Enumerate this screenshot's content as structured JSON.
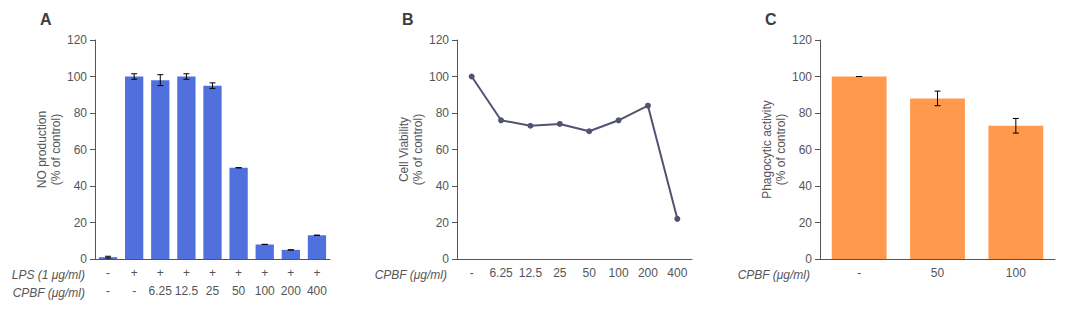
{
  "chart_data": [
    {
      "type": "bar",
      "title": "A",
      "ylabel": "NO production\n(% of control)",
      "xlabel_lps": "LPS (1 μg/ml)",
      "categories_lps": [
        "-",
        "+",
        "+",
        "+",
        "+",
        "+",
        "+",
        "+",
        "+"
      ],
      "xlabel": "CPBF (μg/ml)",
      "categories": [
        "-",
        "-",
        "6.25",
        "12.5",
        "25",
        "50",
        "100",
        "200",
        "400"
      ],
      "values": [
        1,
        100,
        98,
        100,
        95,
        50,
        8,
        5,
        13
      ],
      "errors": [
        0.5,
        1.5,
        3,
        1.5,
        1.5,
        0,
        0,
        0,
        0
      ],
      "ylim": [
        0,
        120
      ],
      "yticks": [
        0,
        20,
        40,
        60,
        80,
        100,
        120
      ],
      "grid": false
    },
    {
      "type": "line",
      "title": "B",
      "ylabel": "Cell Viability\n(% of control)",
      "xlabel": "CPBF (μg/ml)",
      "categories": [
        "-",
        "6.25",
        "12.5",
        "25",
        "50",
        "100",
        "200",
        "400"
      ],
      "values": [
        100,
        76,
        73,
        74,
        70,
        76,
        84,
        22
      ],
      "marker": "circle",
      "ylim": [
        0,
        120
      ],
      "yticks": [
        0,
        20,
        40,
        60,
        80,
        100,
        120
      ],
      "grid": false
    },
    {
      "type": "bar",
      "title": "C",
      "ylabel": "Phagocytic activity\n(% of control)",
      "xlabel": "CPBF (μg/ml)",
      "categories": [
        "-",
        "50",
        "100"
      ],
      "values": [
        100,
        88,
        73
      ],
      "errors": [
        0,
        4,
        4
      ],
      "ylim": [
        0,
        120
      ],
      "yticks": [
        0,
        20,
        40,
        60,
        80,
        100,
        120
      ],
      "grid": false
    }
  ]
}
